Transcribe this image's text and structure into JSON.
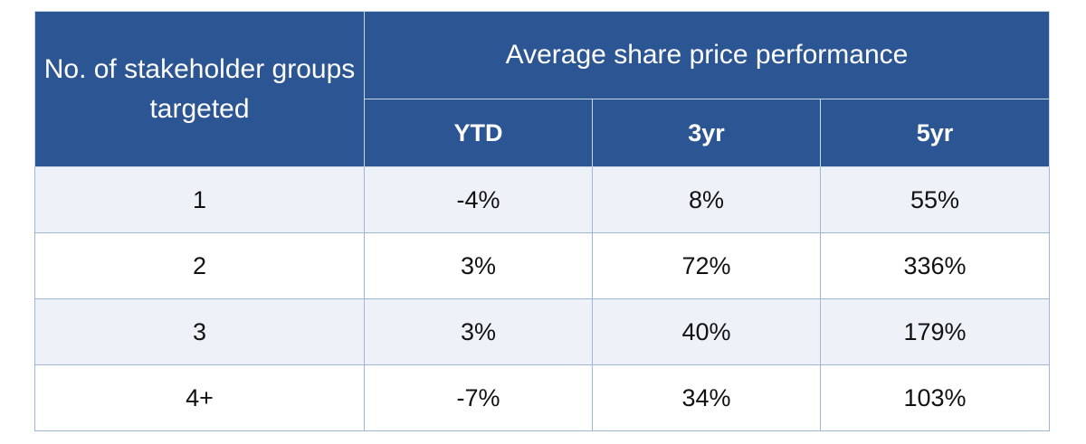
{
  "table": {
    "row_header": "No. of stakeholder groups targeted",
    "group_header": "Average share price performance",
    "columns": [
      "YTD",
      "3yr",
      "5yr"
    ],
    "rows": [
      {
        "label": "1",
        "values": [
          "-4%",
          "8%",
          "55%"
        ]
      },
      {
        "label": "2",
        "values": [
          "3%",
          "72%",
          "336%"
        ]
      },
      {
        "label": "3",
        "values": [
          "3%",
          "40%",
          "179%"
        ]
      },
      {
        "label": "4+",
        "values": [
          "-7%",
          "34%",
          "103%"
        ]
      }
    ]
  },
  "colors": {
    "header_bg": "#2c5593",
    "header_text": "#ffffff",
    "border": "#9fb6d4"
  }
}
